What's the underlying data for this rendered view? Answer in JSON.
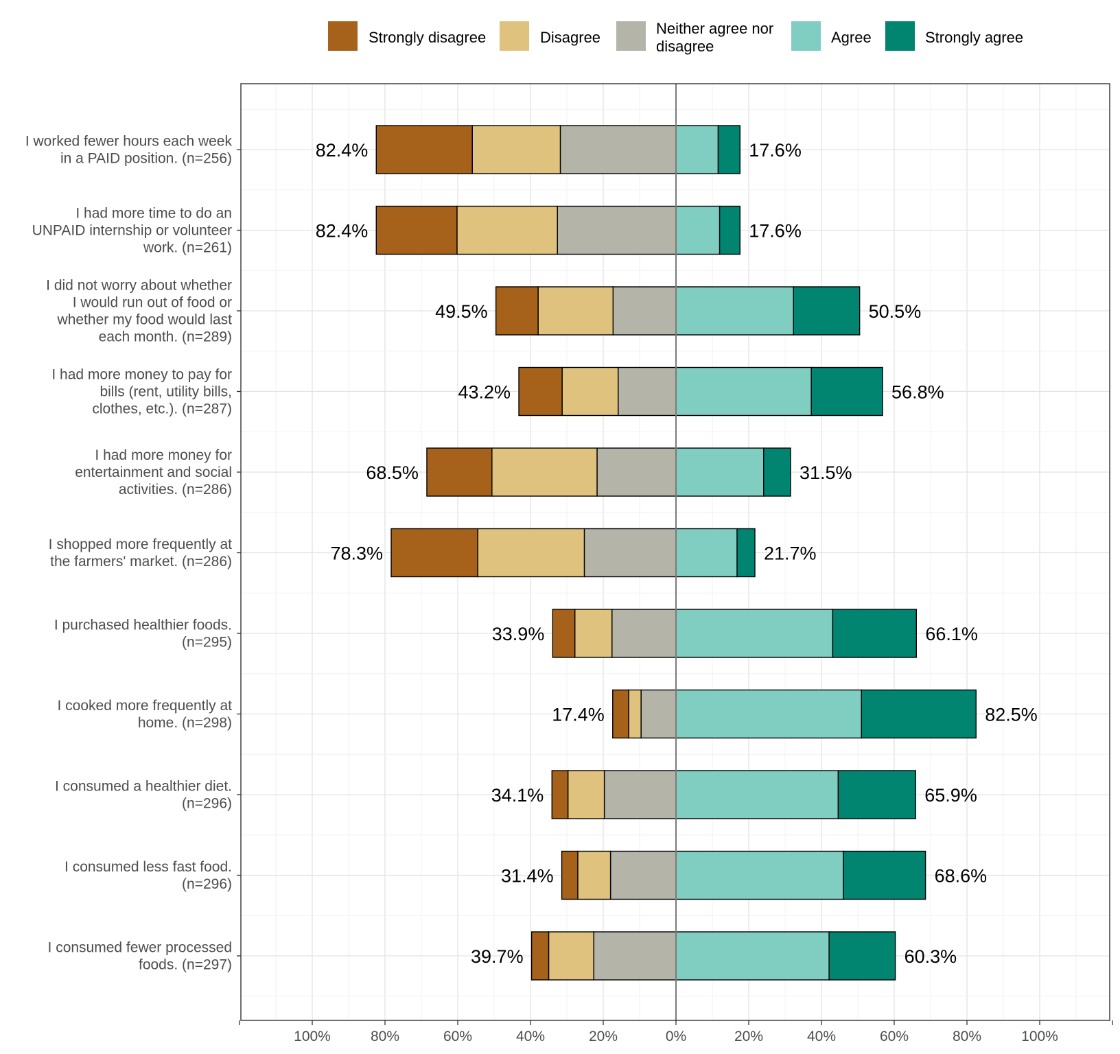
{
  "chart_data": {
    "type": "bar",
    "orientation": "horizontal",
    "stacked": "diverging",
    "legend": {
      "position": "top",
      "items": [
        {
          "key": "strongly_disagree",
          "label": "Strongly disagree",
          "lines": [
            "Strongly disagree"
          ],
          "color": "#a6611a"
        },
        {
          "key": "disagree",
          "label": "Disagree",
          "lines": [
            "Disagree"
          ],
          "color": "#dfc27d"
        },
        {
          "key": "neither",
          "label": "Neither agree nor disagree",
          "lines": [
            "Neither agree nor",
            "disagree"
          ],
          "color": "#b4b5a8"
        },
        {
          "key": "agree",
          "label": "Agree",
          "lines": [
            "Agree"
          ],
          "color": "#80cdc1"
        },
        {
          "key": "strongly_agree",
          "label": "Strongly agree",
          "lines": [
            "Strongly agree"
          ],
          "color": "#018571"
        }
      ]
    },
    "x_ticks": [
      "100%",
      "80%",
      "60%",
      "40%",
      "20%",
      "0%",
      "20%",
      "40%",
      "60%",
      "80%",
      "100%"
    ],
    "xlim": [
      -120,
      120
    ],
    "grid": true,
    "categories": [
      {
        "label_lines": [
          "I worked fewer hours each week",
          "in a PAID position. (n=256)"
        ],
        "strongly_disagree": 26.4,
        "disagree": 24.2,
        "neither": 31.8,
        "agree": 11.6,
        "strongly_agree": 6.0,
        "left_label": "82.4%",
        "right_label": "17.6%"
      },
      {
        "label_lines": [
          "I had more time to do an",
          "UNPAID internship or volunteer",
          "work. (n=261)"
        ],
        "strongly_disagree": 22.2,
        "disagree": 27.6,
        "neither": 32.6,
        "agree": 12.0,
        "strongly_agree": 5.6,
        "left_label": "82.4%",
        "right_label": "17.6%"
      },
      {
        "label_lines": [
          "I did not worry about whether",
          "I would run out of food or",
          "whether my food would last",
          "each month. (n=289)"
        ],
        "strongly_disagree": 11.6,
        "disagree": 20.6,
        "neither": 17.3,
        "agree": 32.3,
        "strongly_agree": 18.2,
        "left_label": "49.5%",
        "right_label": "50.5%"
      },
      {
        "label_lines": [
          "I had more money to pay for",
          "bills (rent, utility bills,",
          "clothes, etc.). (n=287)"
        ],
        "strongly_disagree": 11.9,
        "disagree": 15.4,
        "neither": 15.9,
        "agree": 37.2,
        "strongly_agree": 19.6,
        "left_label": "43.2%",
        "right_label": "56.8%"
      },
      {
        "label_lines": [
          "I had more money for",
          "entertainment and social",
          "activities. (n=286)"
        ],
        "strongly_disagree": 17.9,
        "disagree": 28.9,
        "neither": 21.7,
        "agree": 24.1,
        "strongly_agree": 7.4,
        "left_label": "68.5%",
        "right_label": "31.5%"
      },
      {
        "label_lines": [
          "I shopped more frequently at",
          "the farmers' market. (n=286)"
        ],
        "strongly_disagree": 23.8,
        "disagree": 29.3,
        "neither": 25.2,
        "agree": 16.8,
        "strongly_agree": 4.9,
        "left_label": "78.3%",
        "right_label": "21.7%"
      },
      {
        "label_lines": [
          "I purchased healthier foods.",
          "(n=295)"
        ],
        "strongly_disagree": 6.1,
        "disagree": 10.2,
        "neither": 17.6,
        "agree": 43.1,
        "strongly_agree": 23.0,
        "left_label": "33.9%",
        "right_label": "66.1%"
      },
      {
        "label_lines": [
          "I cooked more frequently at",
          "home. (n=298)"
        ],
        "strongly_disagree": 4.4,
        "disagree": 3.4,
        "neither": 9.6,
        "agree": 51.0,
        "strongly_agree": 31.5,
        "left_label": "17.4%",
        "right_label": "82.5%"
      },
      {
        "label_lines": [
          "I consumed a healthier diet.",
          "(n=296)"
        ],
        "strongly_disagree": 4.4,
        "disagree": 10.0,
        "neither": 19.7,
        "agree": 44.6,
        "strongly_agree": 21.3,
        "left_label": "34.1%",
        "right_label": "65.9%"
      },
      {
        "label_lines": [
          "I consumed less fast food.",
          "(n=296)"
        ],
        "strongly_disagree": 4.4,
        "disagree": 9.0,
        "neither": 18.0,
        "agree": 46.0,
        "strongly_agree": 22.6,
        "left_label": "31.4%",
        "right_label": "68.6%"
      },
      {
        "label_lines": [
          "I consumed fewer processed",
          "foods. (n=297)"
        ],
        "strongly_disagree": 4.7,
        "disagree": 12.4,
        "neither": 22.6,
        "agree": 42.1,
        "strongly_agree": 18.2,
        "left_label": "39.7%",
        "right_label": "60.3%"
      }
    ]
  }
}
